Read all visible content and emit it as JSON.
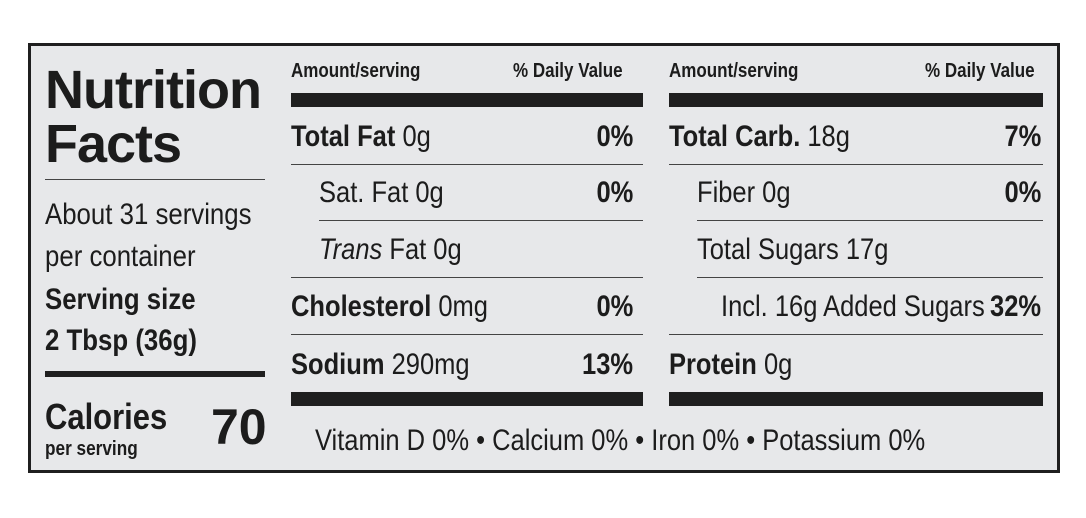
{
  "label": {
    "title_line1": "Nutrition",
    "title_line2": "Facts",
    "servings_line1": "About 31 servings",
    "servings_line2": "per container",
    "serving_size_label": "Serving size",
    "serving_size_value": "2 Tbsp (36g)",
    "calories_label": "Calories",
    "calories_sub": "per serving",
    "calories_value": "70"
  },
  "headers": {
    "amount_serving": "Amount/serving",
    "daily_value": "% Daily Value"
  },
  "left_rows": [
    {
      "name": "Total Fat",
      "amount": " 0g",
      "dv": "0%"
    },
    {
      "name": "Sat. Fat 0g",
      "amount": "",
      "dv": "0%"
    },
    {
      "name_italic": "Trans",
      "name": " Fat 0g",
      "dv": ""
    },
    {
      "name": "Cholesterol",
      "amount": " 0mg",
      "dv": "0%"
    },
    {
      "name": "Sodium",
      "amount": " 290mg",
      "dv": "13%"
    }
  ],
  "right_rows": [
    {
      "name": "Total Carb.",
      "amount": " 18g",
      "dv": "7%"
    },
    {
      "name": "Fiber 0g",
      "amount": "",
      "dv": "0%"
    },
    {
      "name": "Total Sugars 17g",
      "amount": "",
      "dv": ""
    },
    {
      "name": "Incl. 16g Added Sugars",
      "amount": "",
      "dv": "32%"
    },
    {
      "name": "Protein",
      "amount": " 0g",
      "dv": ""
    }
  ],
  "footer": "Vitamin D 0% • Calcium 0% • Iron 0% • Potassium 0%"
}
